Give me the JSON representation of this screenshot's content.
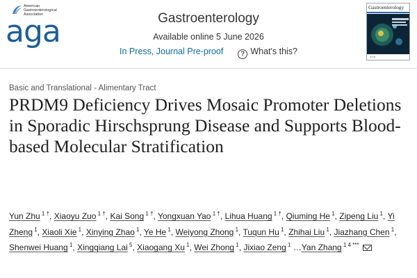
{
  "logo": {
    "society_line1": "American",
    "society_line2": "Gastroenterological",
    "society_line3": "Association",
    "wordmark": "aga",
    "icon": "aga-swoosh-logo"
  },
  "journal": {
    "name": "Gastroenterology",
    "available": "Available online 5 June 2026",
    "status": "In Press, Journal Pre-proof",
    "help_icon": "question-circle-icon",
    "help_link": "What's this?"
  },
  "cover": {
    "title": "Gastroenterology",
    "footer": "AGA"
  },
  "article": {
    "category": "Basic and Translational - Alimentary Tract",
    "title": "PRDM9 Deficiency Drives Mosaic Promoter Deletions in Sporadic Hirschsprung Disease and Supports Blood-based Molecular Stratification",
    "authors": [
      {
        "name": "Yun Zhu",
        "sup": "1 †"
      },
      {
        "name": "Xiaoyu Zuo",
        "sup": "1 †"
      },
      {
        "name": "Kai Song",
        "sup": "1 †"
      },
      {
        "name": "Yongxuan Yao",
        "sup": "1 †"
      },
      {
        "name": "Lihua Huang",
        "sup": "1 †"
      },
      {
        "name": "Qiuming He",
        "sup": "1"
      },
      {
        "name": "Zipeng Liu",
        "sup": "1"
      },
      {
        "name": "Yi Zheng",
        "sup": "1"
      },
      {
        "name": "Xiaoli Xie",
        "sup": "1"
      },
      {
        "name": "Xinying Zhao",
        "sup": "1"
      },
      {
        "name": "Ye He",
        "sup": "1"
      },
      {
        "name": "Weiyong Zhong",
        "sup": "1"
      },
      {
        "name": "Tuqun Hu",
        "sup": "1"
      },
      {
        "name": "Zhihai Liu",
        "sup": "1"
      },
      {
        "name": "Jiazhang Chen",
        "sup": "1"
      },
      {
        "name": "Shenwei Huang",
        "sup": "1"
      },
      {
        "name": "Xingqiang Lai",
        "sup": "5"
      },
      {
        "name": "Xiaogang Xu",
        "sup": "1"
      },
      {
        "name": "Wei Zhong",
        "sup": "1"
      },
      {
        "name": "Jixiao Zeng",
        "sup": "1"
      },
      {
        "name": "Yan Zhang",
        "sup": "1 4 ***"
      }
    ],
    "ellipsis": "…",
    "email_icon": "envelope-icon"
  }
}
